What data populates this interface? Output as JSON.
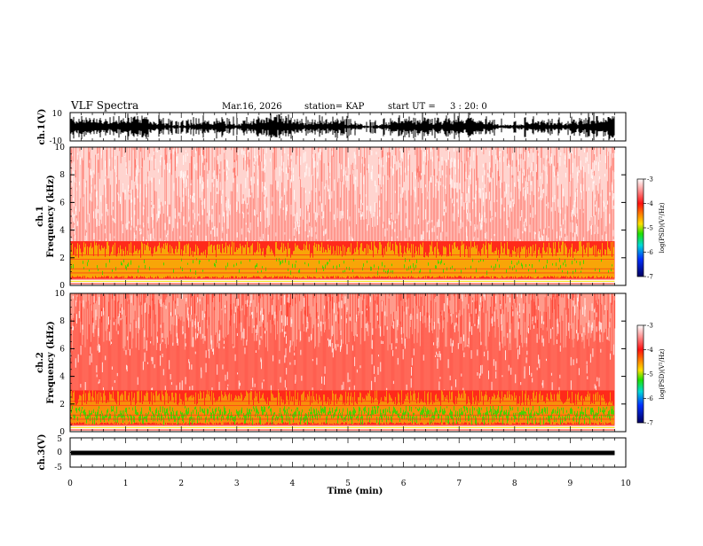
{
  "header": {
    "title": "VLF Spectra",
    "date": "Mar.16, 2026",
    "station": "station= KAP",
    "start_label": "start  UT  =",
    "start_time": "3 : 20: 0"
  },
  "colors": {
    "spec_background": "#ffffff",
    "spec_red": "#ff2a1a",
    "spec_yellow": "#f4e000",
    "spec_green": "#22e000",
    "trace": "#000000"
  },
  "chart_data": [
    {
      "type": "line",
      "name": "ch1-waveform",
      "ylabel": "ch.1(V)",
      "ylim": [
        -10,
        10
      ],
      "yticks": [
        "10",
        "-10"
      ],
      "xlim": [
        0,
        10
      ],
      "data_end_min": 9.8
    },
    {
      "type": "heatmap",
      "name": "ch1-spectrogram",
      "ylabel": "ch.1\nFrequency  (kHz)",
      "ylim": [
        0,
        10
      ],
      "yticks": [
        "10",
        "8",
        "6",
        "4",
        "2",
        "0"
      ],
      "xlim": [
        0,
        10
      ],
      "data_end_min": 9.8,
      "bands": [
        {
          "from_khz": 0.0,
          "to_khz": 0.5,
          "level": "mixed"
        },
        {
          "from_khz": 0.5,
          "to_khz": 3.2,
          "level": "yellow"
        },
        {
          "from_khz": 3.2,
          "to_khz": 10.0,
          "level": "red-sparse"
        }
      ],
      "colorbar": {
        "label": "log(PSD)(V²/Hz)",
        "ticks": [
          "-3",
          "-4",
          "-5",
          "-6",
          "-7"
        ],
        "range": [
          -7,
          -3
        ]
      }
    },
    {
      "type": "heatmap",
      "name": "ch2-spectrogram",
      "ylabel": "ch.2\nFrequency  (kHz)",
      "ylim": [
        0,
        10
      ],
      "yticks": [
        "10",
        "8",
        "6",
        "4",
        "2",
        "0"
      ],
      "xlim": [
        0,
        10
      ],
      "data_end_min": 9.8,
      "bands": [
        {
          "from_khz": 0.0,
          "to_khz": 0.5,
          "level": "mixed"
        },
        {
          "from_khz": 0.5,
          "to_khz": 3.0,
          "level": "green-yellow"
        },
        {
          "from_khz": 3.0,
          "to_khz": 10.0,
          "level": "red-dense"
        }
      ],
      "colorbar": {
        "label": "log(PSD)(V²/Hz)",
        "ticks": [
          "-3",
          "-4",
          "-5",
          "-6",
          "-7"
        ],
        "range": [
          -7,
          -3
        ]
      }
    },
    {
      "type": "line",
      "name": "ch3-waveform",
      "ylabel": "ch.3(V)",
      "ylim": [
        -5,
        5
      ],
      "yticks": [
        "5",
        "0",
        "-5"
      ],
      "xlim": [
        0,
        10
      ],
      "data_end_min": 9.8,
      "level_v": 0
    }
  ],
  "xaxis": {
    "label": "Time  (min)",
    "ticks": [
      "0",
      "1",
      "2",
      "3",
      "4",
      "5",
      "6",
      "7",
      "8",
      "9",
      "10"
    ]
  }
}
